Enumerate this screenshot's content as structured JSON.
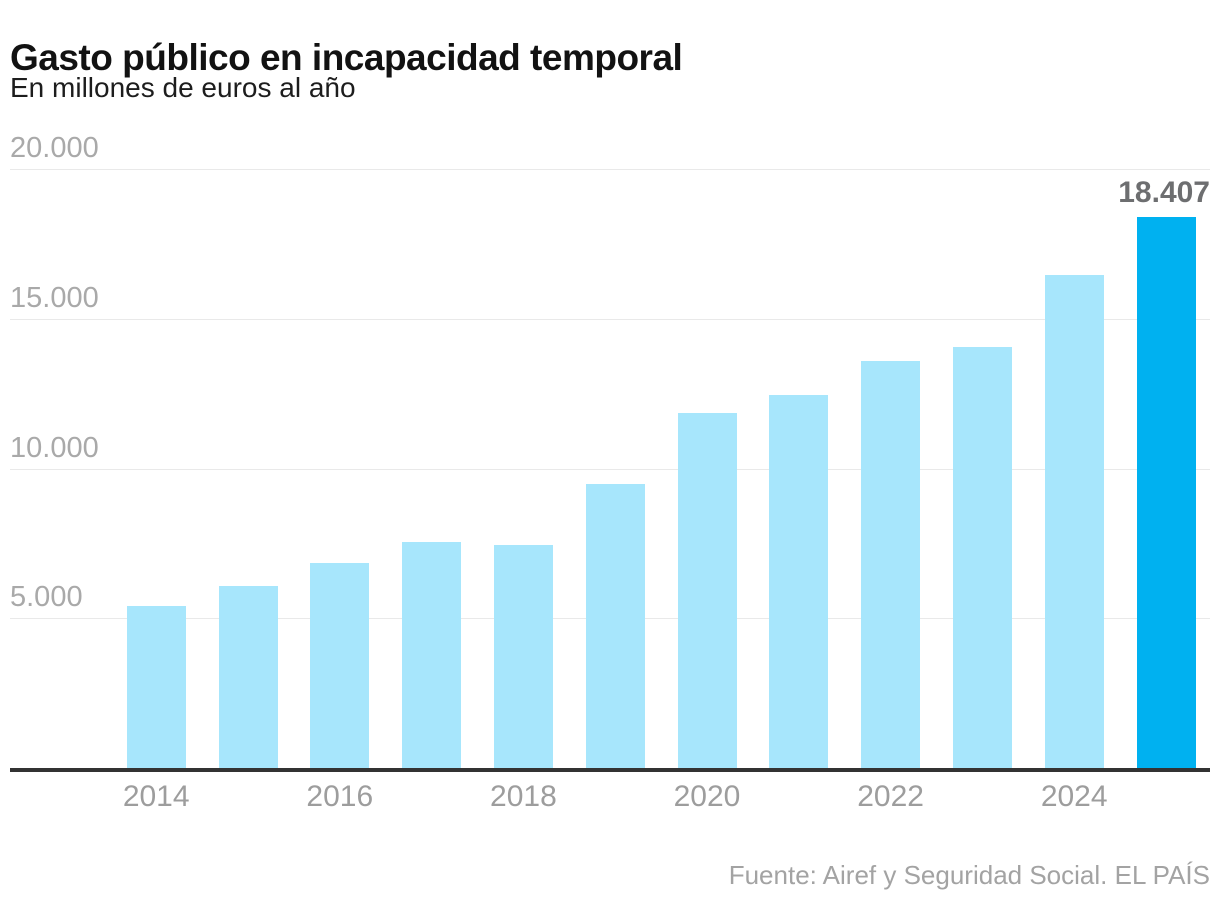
{
  "header": {
    "title": "Gasto público en incapacidad temporal",
    "subtitle": "En millones de euros al año"
  },
  "footer": {
    "source": "Fuente: Airef y Seguridad Social. EL PAÍS"
  },
  "chart_data": {
    "type": "bar",
    "title": "Gasto público en incapacidad temporal",
    "subtitle": "En millones de euros al año",
    "categories": [
      "2014",
      "2015",
      "2016",
      "2017",
      "2018",
      "2019",
      "2020",
      "2021",
      "2022",
      "2023",
      "2024",
      "2025"
    ],
    "values": [
      5400,
      6090,
      6860,
      7560,
      7460,
      9500,
      11870,
      12440,
      13580,
      14050,
      16450,
      18407
    ],
    "highlight_index": 11,
    "highlight_label": "18.407",
    "xlabel": "",
    "ylabel": "En millones de euros al año",
    "ylim": [
      0,
      20000
    ],
    "yticks": [
      5000,
      10000,
      15000,
      20000
    ],
    "ytick_labels": [
      "5.000",
      "10.000",
      "15.000",
      "20.000"
    ],
    "xtick_labels": [
      "2014",
      "2016",
      "2018",
      "2020",
      "2022",
      "2024"
    ],
    "grid": true,
    "legend": false,
    "colors": {
      "bar": "#A7E6FC",
      "highlight": "#00B1F0",
      "grid": "#e9e9e9",
      "axis": "#333333",
      "ytick_text": "#a9a9a9",
      "xtick_text": "#9d9d9d",
      "value_label": "#6d6e70",
      "title": "#121212",
      "source": "#a3a3a3"
    }
  }
}
